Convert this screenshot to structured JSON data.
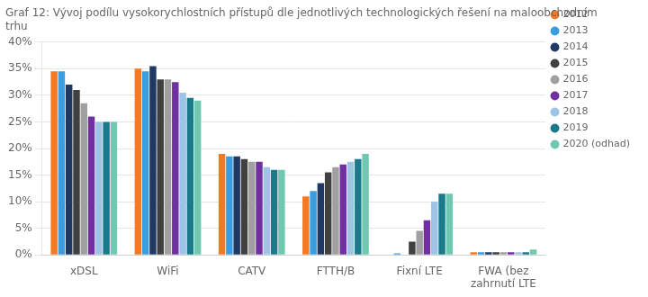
{
  "chart_data": {
    "type": "bar",
    "title": "Graf 12: Vývoj podílu vysokorychlostních přístupů dle jednotlivých technologických řešení na maloobchodním\ntrhu",
    "categories": [
      "xDSL",
      "WiFi",
      "CATV",
      "FTTH/B",
      "Fixní LTE",
      "FWA (bez\nzahrnutí LTE"
    ],
    "series": [
      {
        "name": "2012",
        "color": "#f47920",
        "values": [
          34.5,
          35.0,
          19.0,
          11.0,
          0.0,
          0.5
        ]
      },
      {
        "name": "2013",
        "color": "#3b9ddd",
        "values": [
          34.5,
          34.5,
          18.5,
          12.0,
          0.3,
          0.5
        ]
      },
      {
        "name": "2014",
        "color": "#1f3864",
        "values": [
          32.0,
          35.5,
          18.5,
          13.5,
          0.0,
          0.5
        ]
      },
      {
        "name": "2015",
        "color": "#404040",
        "values": [
          31.0,
          33.0,
          18.0,
          15.5,
          2.5,
          0.5
        ]
      },
      {
        "name": "2016",
        "color": "#a0a0a0",
        "values": [
          28.5,
          33.0,
          17.5,
          16.5,
          4.5,
          0.5
        ]
      },
      {
        "name": "2017",
        "color": "#7030a0",
        "values": [
          26.0,
          32.5,
          17.5,
          17.0,
          6.5,
          0.5
        ]
      },
      {
        "name": "2018",
        "color": "#9dc3e6",
        "values": [
          25.0,
          30.5,
          16.5,
          17.5,
          10.0,
          0.5
        ]
      },
      {
        "name": "2019",
        "color": "#1a7a8a",
        "values": [
          25.0,
          29.5,
          16.0,
          18.0,
          11.5,
          0.5
        ]
      },
      {
        "name": "2020 (odhad)",
        "color": "#70c8b0",
        "values": [
          25.0,
          29.0,
          16.0,
          19.0,
          11.5,
          1.0
        ]
      }
    ],
    "ylim": [
      0,
      40
    ],
    "yticks": [
      {
        "value": 0,
        "label": "0%"
      },
      {
        "value": 5,
        "label": "5%"
      },
      {
        "value": 10,
        "label": "10%"
      },
      {
        "value": 15,
        "label": "15%"
      },
      {
        "value": 20,
        "label": "20%"
      },
      {
        "value": 25,
        "label": "25%"
      },
      {
        "value": 30,
        "label": "30%"
      },
      {
        "value": 35,
        "label": "35%"
      },
      {
        "value": 40,
        "label": "40%"
      }
    ],
    "grid": true,
    "legend": "upper right"
  }
}
